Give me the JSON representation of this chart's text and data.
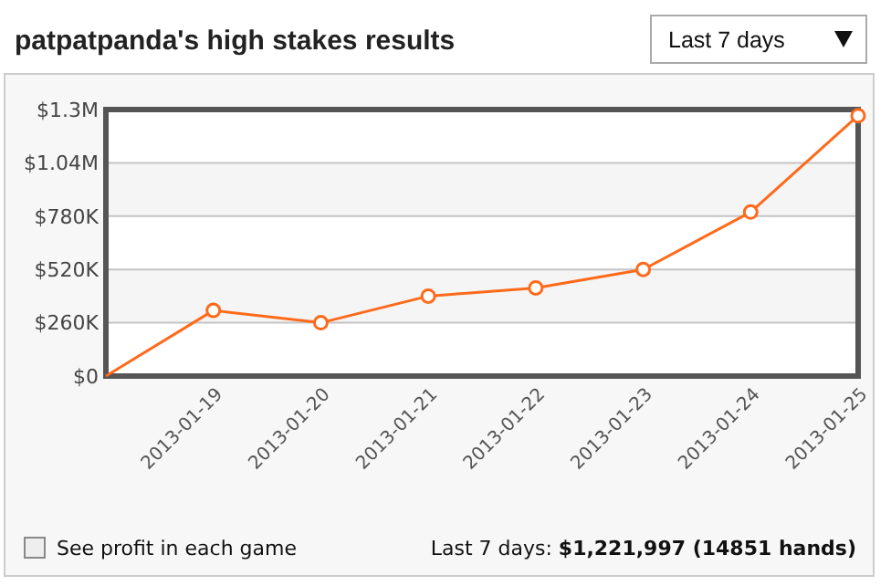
{
  "chart_data": {
    "type": "line",
    "title": "patpatpanda's high stakes results",
    "categories": [
      null,
      "2013-01-19",
      "2013-01-20",
      "2013-01-21",
      "2013-01-22",
      "2013-01-23",
      "2013-01-24",
      "2013-01-25"
    ],
    "series": [
      {
        "color": "#ff6a1a",
        "values": [
          0,
          320000,
          260000,
          390000,
          430000,
          520000,
          800000,
          1270000
        ]
      }
    ],
    "ylim": [
      0,
      1300000
    ],
    "yticks": [
      {
        "value": 0,
        "label": "$0"
      },
      {
        "value": 260000,
        "label": "$260K"
      },
      {
        "value": 520000,
        "label": "$520K"
      },
      {
        "value": 780000,
        "label": "$780K"
      },
      {
        "value": 1040000,
        "label": "$1.04M"
      },
      {
        "value": 1300000,
        "label": "$1.3M"
      }
    ],
    "grid": "y",
    "marker": "circle",
    "annotations": [
      "Last 7 days",
      "See profit in each game",
      "Last 7 days: $1,221,997 (14851 hands)"
    ]
  }
}
